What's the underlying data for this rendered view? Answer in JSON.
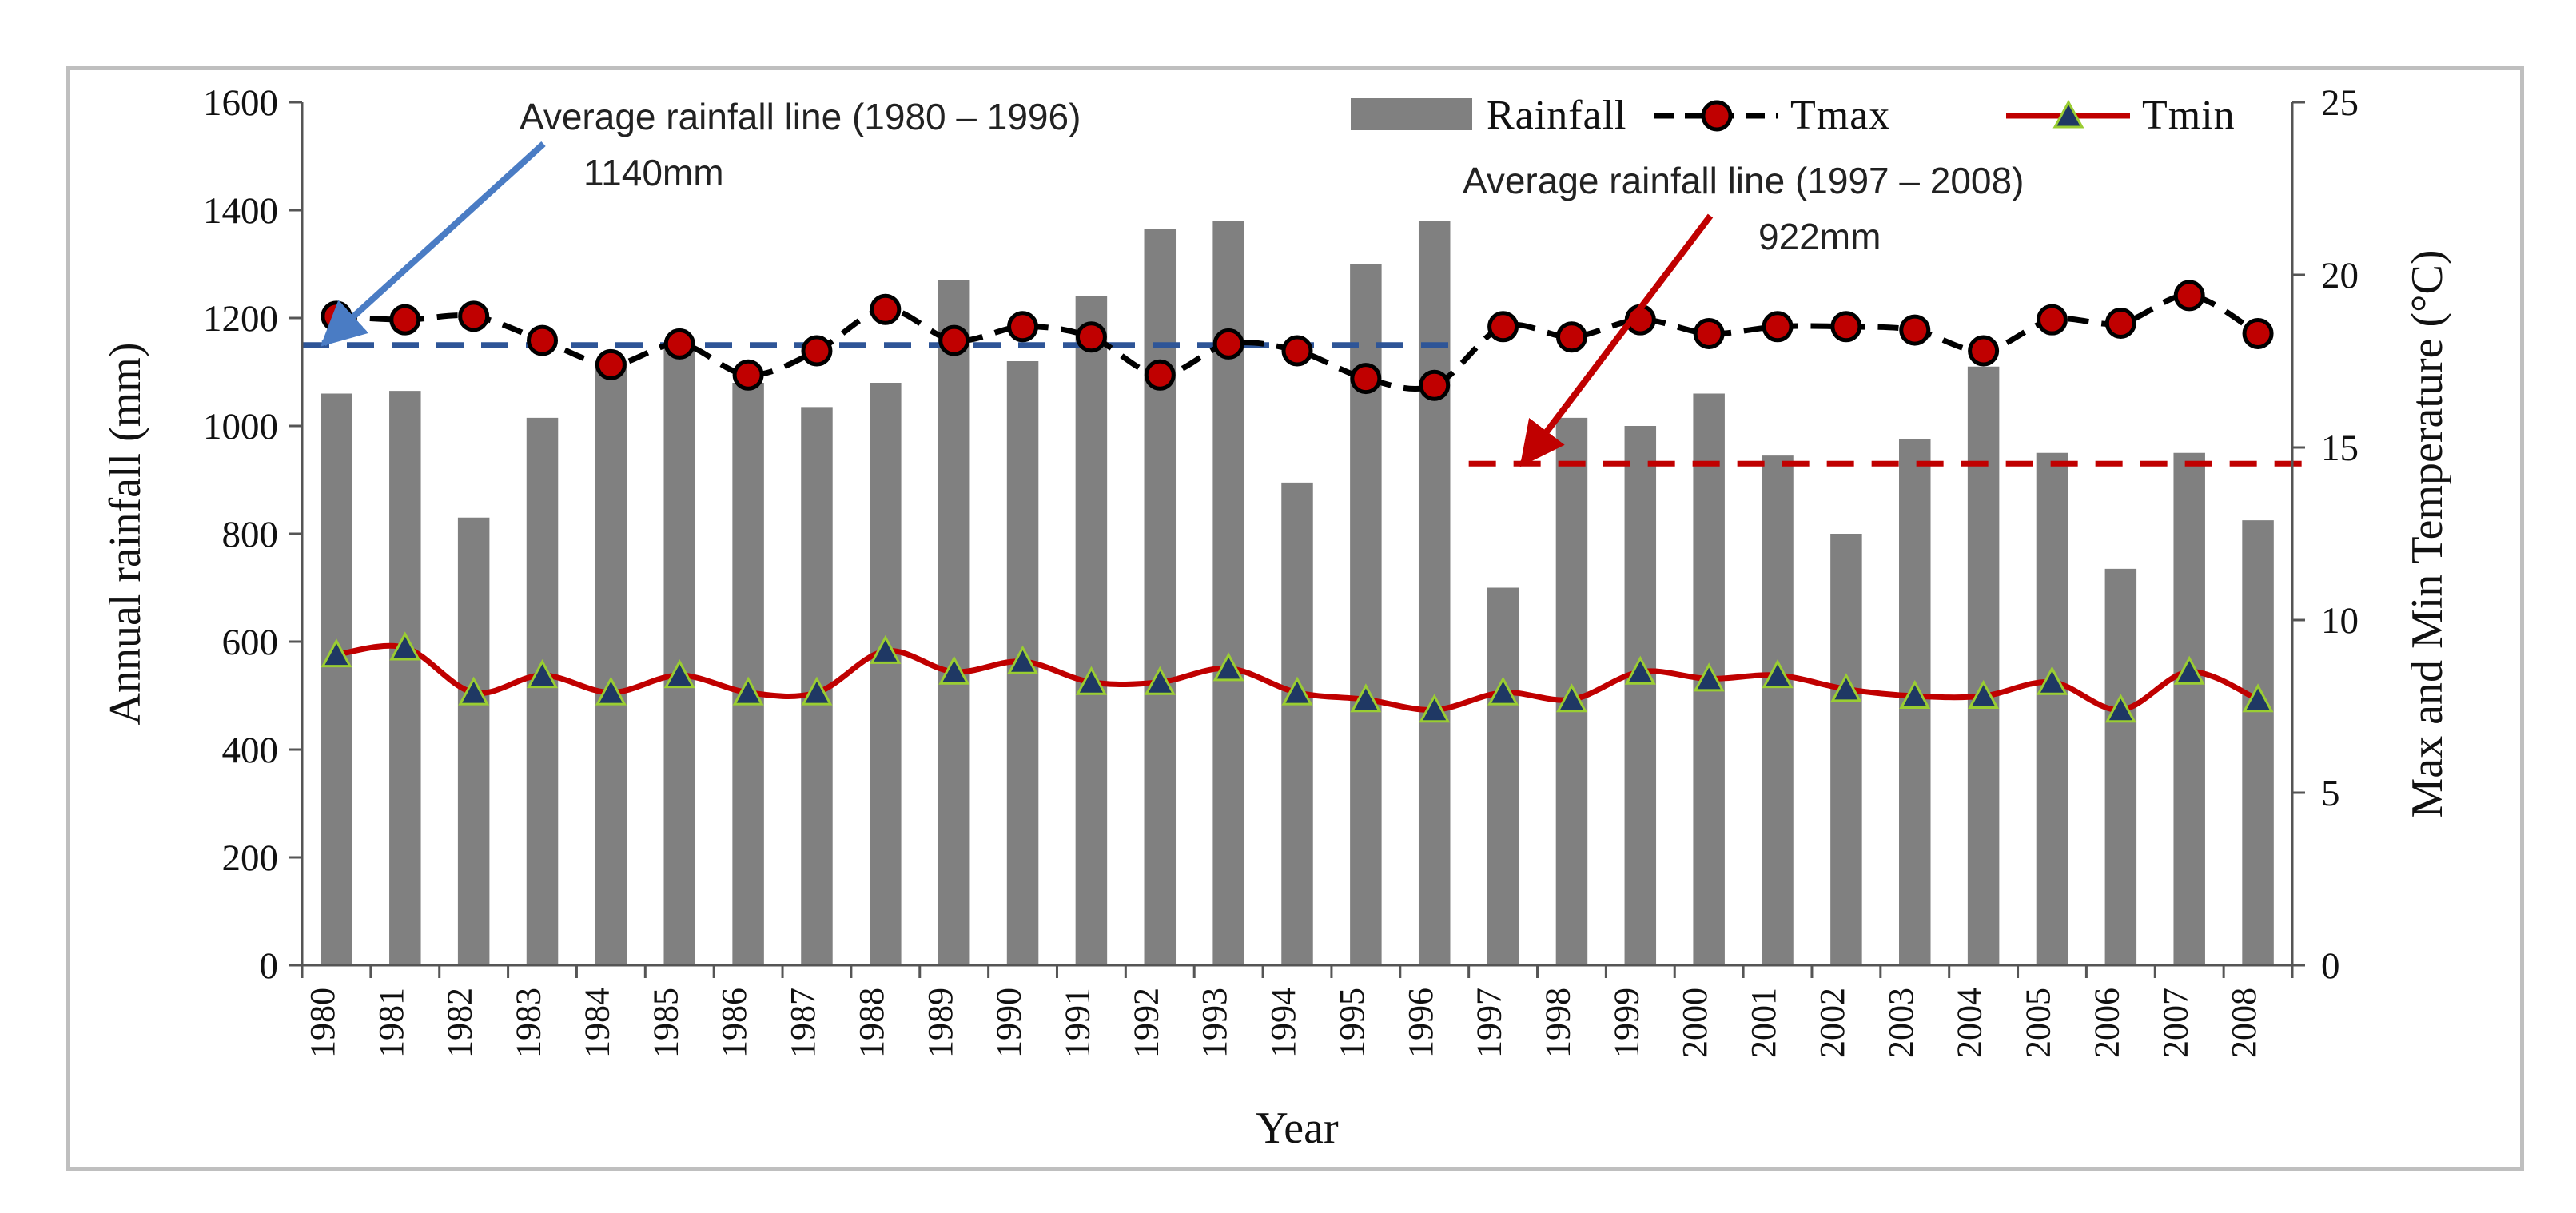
{
  "chart_data": {
    "type": "bar",
    "categories": [
      "1980",
      "1981",
      "1982",
      "1983",
      "1984",
      "1985",
      "1986",
      "1987",
      "1988",
      "1989",
      "1990",
      "1991",
      "1992",
      "1993",
      "1994",
      "1995",
      "1996",
      "1997",
      "1998",
      "1999",
      "2000",
      "2001",
      "2002",
      "2003",
      "2004",
      "2005",
      "2006",
      "2007",
      "2008"
    ],
    "xlabel": "Year",
    "ylabel": "Annual rainfall (mm)",
    "y2label": "Max and Min Temperature (°C)",
    "ylim": [
      0,
      1600
    ],
    "y2lim": [
      0,
      25
    ],
    "yticks": [
      0,
      200,
      400,
      600,
      800,
      1000,
      1200,
      1400,
      1600
    ],
    "y2ticks": [
      0,
      5,
      10,
      15,
      20,
      25
    ],
    "grid": false,
    "legend_position": "top-right",
    "series": [
      {
        "name": "Rainfall",
        "kind": "bar",
        "axis": "left",
        "color": "#808080",
        "values": [
          1060,
          1065,
          830,
          1015,
          1120,
          1150,
          1080,
          1035,
          1080,
          1270,
          1120,
          1240,
          1365,
          1380,
          895,
          1300,
          1380,
          700,
          1015,
          1000,
          1060,
          945,
          800,
          975,
          1110,
          950,
          735,
          950,
          825
        ]
      },
      {
        "name": "Tmax",
        "kind": "line",
        "axis": "right",
        "color": "#000000",
        "marker": "circle",
        "line_style": "dashed",
        "marker_color": "#c00000",
        "values": [
          18.8,
          18.7,
          18.8,
          18.1,
          17.4,
          18.0,
          17.1,
          17.8,
          19.0,
          18.1,
          18.5,
          18.2,
          17.1,
          18.0,
          17.8,
          17.0,
          16.8,
          18.5,
          18.2,
          18.7,
          18.3,
          18.5,
          18.5,
          18.4,
          17.8,
          18.7,
          18.6,
          19.4,
          18.3
        ]
      },
      {
        "name": "Tmin",
        "kind": "line",
        "axis": "right",
        "color": "#c00000",
        "marker": "triangle",
        "line_style": "solid",
        "marker_color": "#1f3864",
        "values": [
          9.0,
          9.2,
          7.9,
          8.4,
          7.9,
          8.4,
          7.9,
          7.9,
          9.1,
          8.5,
          8.8,
          8.2,
          8.2,
          8.6,
          7.9,
          7.7,
          7.4,
          7.9,
          7.7,
          8.5,
          8.3,
          8.4,
          8.0,
          7.8,
          7.8,
          8.2,
          7.4,
          8.5,
          7.7
        ]
      }
    ],
    "reference_lines": [
      {
        "color": "#2e5597",
        "value": 1150,
        "from": "1980",
        "to": "1996",
        "line_style": "dashed"
      },
      {
        "color": "#c00000",
        "value": 930,
        "from": "1997",
        "to": "2008",
        "line_style": "dashed"
      }
    ],
    "annotations": [
      {
        "line1": "Average rainfall line (1980 – 1996)",
        "line2": "1140mm",
        "color": "#4a7cc4"
      },
      {
        "line1": "Average rainfall line (1997 – 2008)",
        "line2": "922mm",
        "color": "#c00000"
      }
    ]
  }
}
